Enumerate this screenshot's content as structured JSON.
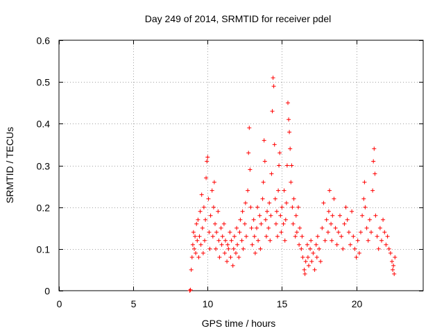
{
  "chart_data": {
    "type": "scatter",
    "title": "Day 249 of 2014, SRMTID for receiver pdel",
    "xlabel": "GPS time / hours",
    "ylabel": "SRMTID / TECUs",
    "xlim": [
      0,
      24.5
    ],
    "ylim": [
      0,
      0.6
    ],
    "xticks": [
      0,
      5,
      10,
      15,
      20
    ],
    "xtick_labels": [
      "0",
      "5",
      "10",
      "15",
      "20"
    ],
    "yticks": [
      0,
      0.1,
      0.2,
      0.3,
      0.4,
      0.5,
      0.6
    ],
    "ytick_labels": [
      "0",
      "0.1",
      "0.2",
      "0.3",
      "0.4",
      "0.5",
      "0.6"
    ],
    "grid": true,
    "marker": "+",
    "color": "#ff0000",
    "series": [
      {
        "name": "pdel",
        "points": [
          [
            8.8,
            0.0
          ],
          [
            8.85,
            0.002
          ],
          [
            8.9,
            0.05
          ],
          [
            8.95,
            0.08
          ],
          [
            9.0,
            0.11
          ],
          [
            9.05,
            0.14
          ],
          [
            9.1,
            0.1
          ],
          [
            9.15,
            0.13
          ],
          [
            9.2,
            0.09
          ],
          [
            9.25,
            0.16
          ],
          [
            9.3,
            0.12
          ],
          [
            9.35,
            0.17
          ],
          [
            9.4,
            0.08
          ],
          [
            9.45,
            0.13
          ],
          [
            9.5,
            0.19
          ],
          [
            9.55,
            0.11
          ],
          [
            9.6,
            0.23
          ],
          [
            9.65,
            0.15
          ],
          [
            9.7,
            0.09
          ],
          [
            9.75,
            0.2
          ],
          [
            9.8,
            0.12
          ],
          [
            9.85,
            0.17
          ],
          [
            9.9,
            0.27
          ],
          [
            9.95,
            0.31
          ],
          [
            10.0,
            0.32
          ],
          [
            10.05,
            0.22
          ],
          [
            10.1,
            0.14
          ],
          [
            10.15,
            0.1
          ],
          [
            10.2,
            0.18
          ],
          [
            10.3,
            0.24
          ],
          [
            10.35,
            0.13
          ],
          [
            10.4,
            0.2
          ],
          [
            10.45,
            0.26
          ],
          [
            10.5,
            0.16
          ],
          [
            10.55,
            0.1
          ],
          [
            10.6,
            0.14
          ],
          [
            10.7,
            0.19
          ],
          [
            10.75,
            0.12
          ],
          [
            10.8,
            0.08
          ],
          [
            10.9,
            0.15
          ],
          [
            10.95,
            0.11
          ],
          [
            11.0,
            0.13
          ],
          [
            11.1,
            0.16
          ],
          [
            11.15,
            0.09
          ],
          [
            11.2,
            0.12
          ],
          [
            11.3,
            0.07
          ],
          [
            11.35,
            0.11
          ],
          [
            11.4,
            0.1
          ],
          [
            11.5,
            0.14
          ],
          [
            11.55,
            0.08
          ],
          [
            11.6,
            0.12
          ],
          [
            11.7,
            0.06
          ],
          [
            11.75,
            0.1
          ],
          [
            11.8,
            0.13
          ],
          [
            11.9,
            0.09
          ],
          [
            11.95,
            0.15
          ],
          [
            12.0,
            0.11
          ],
          [
            12.1,
            0.08
          ],
          [
            12.15,
            0.14
          ],
          [
            12.2,
            0.17
          ],
          [
            12.3,
            0.12
          ],
          [
            12.35,
            0.19
          ],
          [
            12.4,
            0.1
          ],
          [
            12.5,
            0.16
          ],
          [
            12.55,
            0.21
          ],
          [
            12.6,
            0.13
          ],
          [
            12.7,
            0.24
          ],
          [
            12.75,
            0.33
          ],
          [
            12.8,
            0.39
          ],
          [
            12.85,
            0.29
          ],
          [
            12.9,
            0.2
          ],
          [
            12.95,
            0.15
          ],
          [
            13.0,
            0.11
          ],
          [
            13.1,
            0.17
          ],
          [
            13.15,
            0.13
          ],
          [
            13.2,
            0.09
          ],
          [
            13.3,
            0.15
          ],
          [
            13.35,
            0.2
          ],
          [
            13.4,
            0.12
          ],
          [
            13.5,
            0.18
          ],
          [
            13.55,
            0.1
          ],
          [
            13.6,
            0.16
          ],
          [
            13.7,
            0.22
          ],
          [
            13.75,
            0.26
          ],
          [
            13.8,
            0.36
          ],
          [
            13.85,
            0.31
          ],
          [
            13.9,
            0.17
          ],
          [
            13.95,
            0.13
          ],
          [
            14.0,
            0.19
          ],
          [
            14.1,
            0.15
          ],
          [
            14.15,
            0.21
          ],
          [
            14.2,
            0.12
          ],
          [
            14.25,
            0.18
          ],
          [
            14.3,
            0.28
          ],
          [
            14.35,
            0.43
          ],
          [
            14.4,
            0.51
          ],
          [
            14.45,
            0.49
          ],
          [
            14.5,
            0.35
          ],
          [
            14.55,
            0.22
          ],
          [
            14.6,
            0.16
          ],
          [
            14.65,
            0.19
          ],
          [
            14.7,
            0.13
          ],
          [
            14.75,
            0.24
          ],
          [
            14.8,
            0.3
          ],
          [
            14.85,
            0.33
          ],
          [
            14.9,
            0.18
          ],
          [
            14.95,
            0.14
          ],
          [
            15.0,
            0.2
          ],
          [
            15.1,
            0.16
          ],
          [
            15.15,
            0.24
          ],
          [
            15.2,
            0.12
          ],
          [
            15.25,
            0.17
          ],
          [
            15.3,
            0.21
          ],
          [
            15.35,
            0.3
          ],
          [
            15.4,
            0.45
          ],
          [
            15.45,
            0.41
          ],
          [
            15.5,
            0.38
          ],
          [
            15.55,
            0.34
          ],
          [
            15.6,
            0.26
          ],
          [
            15.65,
            0.3
          ],
          [
            15.7,
            0.2
          ],
          [
            15.75,
            0.16
          ],
          [
            15.8,
            0.22
          ],
          [
            15.9,
            0.13
          ],
          [
            15.95,
            0.18
          ],
          [
            16.0,
            0.14
          ],
          [
            16.1,
            0.2
          ],
          [
            16.15,
            0.11
          ],
          [
            16.2,
            0.15
          ],
          [
            16.3,
            0.1
          ],
          [
            16.35,
            0.13
          ],
          [
            16.4,
            0.08
          ],
          [
            16.5,
            0.05
          ],
          [
            16.55,
            0.04
          ],
          [
            16.6,
            0.07
          ],
          [
            16.7,
            0.11
          ],
          [
            16.75,
            0.08
          ],
          [
            16.8,
            0.06
          ],
          [
            16.9,
            0.1
          ],
          [
            16.95,
            0.12
          ],
          [
            17.0,
            0.07
          ],
          [
            17.1,
            0.09
          ],
          [
            17.2,
            0.05
          ],
          [
            17.3,
            0.11
          ],
          [
            17.35,
            0.08
          ],
          [
            17.4,
            0.13
          ],
          [
            17.5,
            0.1
          ],
          [
            17.6,
            0.07
          ],
          [
            17.7,
            0.15
          ],
          [
            17.8,
            0.21
          ],
          [
            17.9,
            0.12
          ],
          [
            18.0,
            0.17
          ],
          [
            18.1,
            0.14
          ],
          [
            18.15,
            0.19
          ],
          [
            18.2,
            0.24
          ],
          [
            18.3,
            0.16
          ],
          [
            18.35,
            0.12
          ],
          [
            18.4,
            0.18
          ],
          [
            18.5,
            0.22
          ],
          [
            18.6,
            0.15
          ],
          [
            18.7,
            0.11
          ],
          [
            18.8,
            0.14
          ],
          [
            18.9,
            0.18
          ],
          [
            19.0,
            0.13
          ],
          [
            19.1,
            0.1
          ],
          [
            19.2,
            0.16
          ],
          [
            19.3,
            0.2
          ],
          [
            19.4,
            0.17
          ],
          [
            19.5,
            0.14
          ],
          [
            19.6,
            0.11
          ],
          [
            19.7,
            0.19
          ],
          [
            19.8,
            0.13
          ],
          [
            19.9,
            0.1
          ],
          [
            20.0,
            0.08
          ],
          [
            20.1,
            0.12
          ],
          [
            20.2,
            0.09
          ],
          [
            20.3,
            0.14
          ],
          [
            20.4,
            0.18
          ],
          [
            20.5,
            0.22
          ],
          [
            20.55,
            0.26
          ],
          [
            20.6,
            0.2
          ],
          [
            20.7,
            0.15
          ],
          [
            20.8,
            0.12
          ],
          [
            20.9,
            0.17
          ],
          [
            21.0,
            0.14
          ],
          [
            21.1,
            0.24
          ],
          [
            21.15,
            0.31
          ],
          [
            21.2,
            0.34
          ],
          [
            21.25,
            0.28
          ],
          [
            21.3,
            0.18
          ],
          [
            21.4,
            0.13
          ],
          [
            21.5,
            0.1
          ],
          [
            21.6,
            0.15
          ],
          [
            21.7,
            0.12
          ],
          [
            21.8,
            0.17
          ],
          [
            21.9,
            0.14
          ],
          [
            22.0,
            0.11
          ],
          [
            22.1,
            0.13
          ],
          [
            22.2,
            0.1
          ],
          [
            22.3,
            0.09
          ],
          [
            22.4,
            0.07
          ],
          [
            22.45,
            0.05
          ],
          [
            22.5,
            0.06
          ],
          [
            22.55,
            0.04
          ],
          [
            22.6,
            0.08
          ]
        ]
      }
    ]
  }
}
